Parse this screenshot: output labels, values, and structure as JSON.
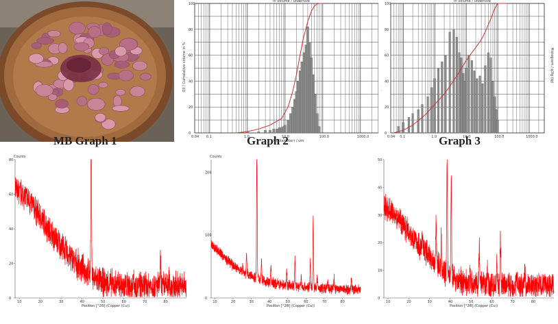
{
  "captions": {
    "sample_photo": "MB Graph 1",
    "psd_graph_2": "Graph 2",
    "psd_graph_3": "Graph 3"
  },
  "colors": {
    "psd_bars": "#8a8a8a",
    "cumulative_curve": "#d03030",
    "xrd_line": "#ff0000",
    "pottery_outer": "#8c5a32",
    "pottery_inner": "#b8824e",
    "powder_pellets": "#b86f86",
    "powder_pile": "#7a2f45"
  },
  "chart_data": [
    {
      "id": "psd-graph-2",
      "type": "bar",
      "title": "In volume / undersize",
      "xlabel": "X (Diameter) / um",
      "ylabel": "Q3 / Cumulative volume in %",
      "xscale": "log",
      "xlim": [
        0.04,
        3000
      ],
      "ylim": [
        0,
        100
      ],
      "x_ticks": [
        "0.04",
        "0.1",
        "1.0",
        "10.0",
        "100.0",
        "1000.0"
      ],
      "y_ticks": [
        "0",
        "20",
        "40",
        "60",
        "80",
        "100"
      ],
      "grid": true,
      "series": [
        {
          "kind": "histogram",
          "x": [
            1,
            2,
            3,
            4,
            5,
            6,
            7,
            8,
            9,
            10,
            12,
            14,
            16,
            18,
            20,
            22,
            25,
            28,
            32,
            36,
            40,
            45,
            50,
            56,
            63,
            71,
            80
          ],
          "values": [
            1,
            1,
            2,
            2,
            3,
            3,
            4,
            4,
            5,
            6,
            10,
            15,
            20,
            26,
            32,
            40,
            48,
            55,
            62,
            68,
            82,
            70,
            58,
            45,
            30,
            15,
            5
          ]
        },
        {
          "kind": "cumulative",
          "x": [
            0.5,
            1,
            2,
            4,
            8,
            12,
            16,
            20,
            25,
            30,
            40,
            50,
            60,
            70,
            80,
            100
          ],
          "values": [
            0,
            1,
            3,
            6,
            11,
            20,
            32,
            45,
            60,
            72,
            86,
            94,
            98,
            99.5,
            100,
            100
          ]
        }
      ]
    },
    {
      "id": "psd-graph-3",
      "type": "bar",
      "title": "In volume / undersize",
      "xlabel": "",
      "ylabel": "Q3 / Cumulative volume in %",
      "ylabel_right": "Histogram / q3lg (lg)",
      "xscale": "log",
      "xlim": [
        0.04,
        3000
      ],
      "ylim": [
        0,
        100
      ],
      "x_ticks": [
        "0.04",
        "0.1",
        "1.0",
        "10.0",
        "100.0",
        "1000.0"
      ],
      "y_ticks": [
        "0",
        "20",
        "40",
        "60",
        "80",
        "100"
      ],
      "grid": true,
      "series": [
        {
          "kind": "histogram",
          "x": [
            0.07,
            0.1,
            0.15,
            0.2,
            0.3,
            0.4,
            0.6,
            0.8,
            1,
            1.3,
            1.7,
            2.2,
            3,
            4,
            5,
            6,
            7,
            8,
            9,
            10,
            12,
            15,
            18,
            22,
            27,
            33,
            40,
            50,
            60,
            70,
            80,
            90,
            100
          ],
          "values": [
            5,
            8,
            12,
            15,
            18,
            22,
            28,
            35,
            42,
            50,
            55,
            60,
            78,
            80,
            74,
            62,
            58,
            46,
            40,
            50,
            60,
            56,
            48,
            42,
            44,
            38,
            52,
            62,
            58,
            40,
            28,
            18,
            10
          ]
        },
        {
          "kind": "cumulative",
          "x": [
            0.05,
            0.1,
            0.2,
            0.5,
            1,
            2,
            3,
            5,
            8,
            10,
            15,
            20,
            30,
            40,
            60,
            80,
            100,
            200
          ],
          "values": [
            0,
            2,
            6,
            14,
            22,
            30,
            36,
            44,
            52,
            56,
            62,
            66,
            72,
            78,
            88,
            96,
            100,
            100
          ]
        }
      ]
    },
    {
      "id": "xrd-pattern-1",
      "type": "line",
      "title": "",
      "xlabel": "Position [°2Θ] (Copper (Cu))",
      "ylabel": "Counts",
      "xlim": [
        8,
        90
      ],
      "ylim": [
        0,
        80
      ],
      "x_ticks": [
        "10",
        "20",
        "30",
        "40",
        "50",
        "60",
        "70",
        "80"
      ],
      "y_ticks": [
        "0",
        "20",
        "40",
        "60",
        "80"
      ],
      "baseline": [
        [
          8,
          62
        ],
        [
          12,
          60
        ],
        [
          16,
          54
        ],
        [
          20,
          47
        ],
        [
          25,
          38
        ],
        [
          30,
          30
        ],
        [
          35,
          23
        ],
        [
          40,
          17
        ],
        [
          45,
          12
        ],
        [
          50,
          9
        ],
        [
          55,
          8
        ],
        [
          60,
          7
        ],
        [
          70,
          7
        ],
        [
          80,
          7
        ],
        [
          90,
          7
        ]
      ],
      "peaks": [
        [
          44.4,
          80
        ],
        [
          64.6,
          6
        ],
        [
          77.6,
          14
        ],
        [
          81.7,
          4
        ]
      ],
      "noise": 7
    },
    {
      "id": "xrd-pattern-2",
      "type": "line",
      "title": "",
      "xlabel": "Position [°2Θ] (Copper (Cu))",
      "ylabel": "Counts",
      "xlim": [
        8,
        90
      ],
      "ylim": [
        0,
        220
      ],
      "x_ticks": [
        "10",
        "20",
        "30",
        "40",
        "50",
        "60",
        "70",
        "80"
      ],
      "y_ticks": [
        "0",
        "100",
        "200"
      ],
      "baseline": [
        [
          8,
          85
        ],
        [
          12,
          75
        ],
        [
          16,
          62
        ],
        [
          20,
          52
        ],
        [
          25,
          42
        ],
        [
          30,
          35
        ],
        [
          35,
          30
        ],
        [
          40,
          25
        ],
        [
          50,
          20
        ],
        [
          60,
          17
        ],
        [
          70,
          15
        ],
        [
          80,
          14
        ],
        [
          90,
          13
        ]
      ],
      "peaks": [
        [
          25.3,
          12
        ],
        [
          27.4,
          30
        ],
        [
          33.1,
          200
        ],
        [
          35.6,
          30
        ],
        [
          40.8,
          22
        ],
        [
          49.5,
          25
        ],
        [
          54.0,
          45
        ],
        [
          57.4,
          15
        ],
        [
          62.4,
          42
        ],
        [
          64.0,
          110
        ],
        [
          66.2,
          15
        ],
        [
          72.0,
          10
        ],
        [
          75.4,
          18
        ],
        [
          84.9,
          18
        ]
      ],
      "noise": 7
    },
    {
      "id": "xrd-pattern-3",
      "type": "line",
      "title": "",
      "xlabel": "Position [°2Θ] (Copper (Cu))",
      "ylabel": "",
      "xlim": [
        8,
        90
      ],
      "ylim": [
        0,
        50
      ],
      "x_ticks": [
        "10",
        "20",
        "30",
        "40",
        "50",
        "60",
        "70",
        "80"
      ],
      "y_ticks": [
        "0",
        "10",
        "20",
        "30",
        "40",
        "50"
      ],
      "baseline": [
        [
          8,
          33
        ],
        [
          12,
          31
        ],
        [
          16,
          28
        ],
        [
          20,
          24
        ],
        [
          25,
          19
        ],
        [
          30,
          15
        ],
        [
          35,
          11
        ],
        [
          40,
          8
        ],
        [
          45,
          6
        ],
        [
          50,
          5
        ],
        [
          60,
          4.5
        ],
        [
          70,
          4.5
        ],
        [
          80,
          4.5
        ],
        [
          90,
          4.5
        ]
      ],
      "peaks": [
        [
          26.6,
          6
        ],
        [
          33.2,
          18
        ],
        [
          35.7,
          10
        ],
        [
          38.5,
          42
        ],
        [
          40.5,
          36
        ],
        [
          49.5,
          8
        ],
        [
          54.0,
          14
        ],
        [
          58.0,
          6
        ],
        [
          62.5,
          9
        ],
        [
          64.2,
          16
        ],
        [
          72.0,
          5
        ],
        [
          76.0,
          6
        ]
      ],
      "noise": 4
    }
  ]
}
